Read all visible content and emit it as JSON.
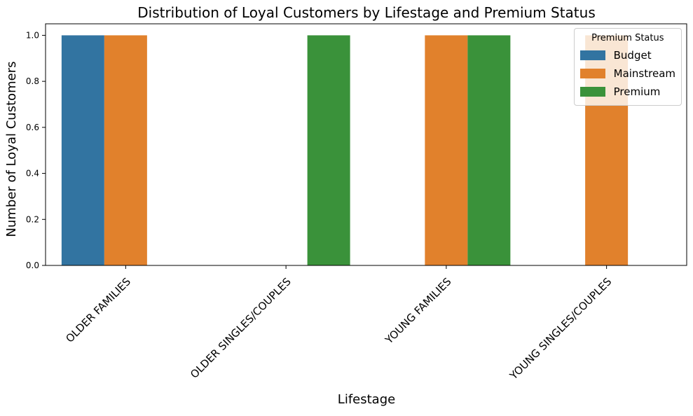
{
  "chart_data": {
    "type": "bar",
    "title": "Distribution of Loyal Customers by Lifestage and Premium Status",
    "xlabel": "Lifestage",
    "ylabel": "Number of Loyal Customers",
    "categories": [
      "OLDER FAMILIES",
      "OLDER SINGLES/COUPLES",
      "YOUNG FAMILIES",
      "YOUNG SINGLES/COUPLES"
    ],
    "series": [
      {
        "name": "Budget",
        "color": "#3274a1",
        "values": [
          1,
          0,
          0,
          0
        ]
      },
      {
        "name": "Mainstream",
        "color": "#e1812c",
        "values": [
          1,
          0,
          1,
          1
        ]
      },
      {
        "name": "Premium",
        "color": "#3a923a",
        "values": [
          0,
          1,
          1,
          0
        ]
      }
    ],
    "ylim": [
      0,
      1.05
    ],
    "yticks": [
      "0.0",
      "0.2",
      "0.4",
      "0.6",
      "0.8",
      "1.0"
    ],
    "legend": {
      "title": "Premium Status",
      "position": "top-right"
    },
    "grid": false
  }
}
